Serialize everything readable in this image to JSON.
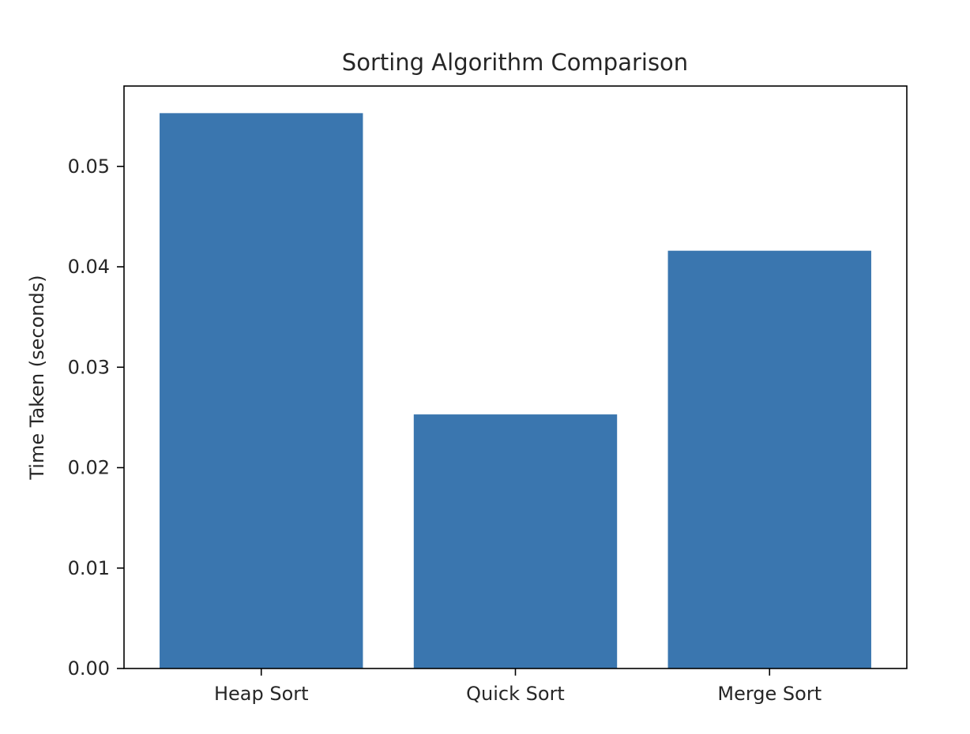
{
  "chart_data": {
    "type": "bar",
    "title": "Sorting Algorithm Comparison",
    "xlabel": "",
    "ylabel": "Time Taken (seconds)",
    "categories": [
      "Heap Sort",
      "Quick Sort",
      "Merge Sort"
    ],
    "values": [
      0.0553,
      0.0253,
      0.0416
    ],
    "ylim": [
      0,
      0.058
    ],
    "yticks": [
      0.0,
      0.01,
      0.02,
      0.03,
      0.04,
      0.05
    ],
    "ytick_labels": [
      "0.00",
      "0.01",
      "0.02",
      "0.03",
      "0.04",
      "0.05"
    ],
    "grid": false,
    "legend": "none",
    "bar_color": "#3a76af"
  }
}
